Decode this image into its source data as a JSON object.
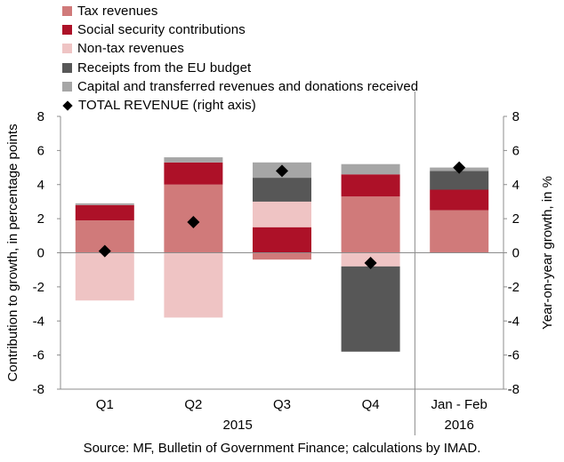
{
  "chart_data": {
    "type": "bar",
    "stacked": true,
    "categories": [
      "Q1",
      "Q2",
      "Q3",
      "Q4",
      "Jan - Feb"
    ],
    "groups": [
      {
        "label": "2015",
        "categories": [
          "Q1",
          "Q2",
          "Q3",
          "Q4"
        ]
      },
      {
        "label": "2016",
        "categories": [
          "Jan - Feb"
        ]
      }
    ],
    "series": [
      {
        "name": "Tax revenues",
        "color": "#d07a7a",
        "values": [
          1.9,
          4.0,
          -0.4,
          3.3,
          2.5
        ]
      },
      {
        "name": "Social security contributions",
        "color": "#ad1128",
        "values": [
          0.9,
          1.3,
          1.5,
          1.3,
          1.2
        ]
      },
      {
        "name": "Non-tax revenues",
        "color": "#efc4c4",
        "values": [
          -2.8,
          -3.8,
          1.5,
          -0.8,
          0.0
        ]
      },
      {
        "name": "Receipts from the EU budget",
        "color": "#575757",
        "values": [
          0.0,
          0.0,
          1.4,
          -5.0,
          1.1
        ]
      },
      {
        "name": "Capital and transferred revenues and donations received",
        "color": "#a6a6a6",
        "values": [
          0.1,
          0.3,
          0.9,
          0.6,
          0.2
        ]
      }
    ],
    "total": {
      "name": "TOTAL REVENUE (right axis)",
      "values": [
        0.1,
        1.8,
        4.8,
        -0.6,
        5.0
      ]
    },
    "ylabel": "Contribution to growth, in percentage points",
    "y2label": "Year-on-year growth, in %",
    "ylim": [
      -8,
      8
    ],
    "y2lim": [
      -8,
      8
    ],
    "yticks": [
      -8,
      -6,
      -4,
      -2,
      0,
      2,
      4,
      6,
      8
    ],
    "grid": false,
    "legend_position": "top-left"
  },
  "source": "Source: MF, Bulletin of Government Finance; calculations by IMAD."
}
